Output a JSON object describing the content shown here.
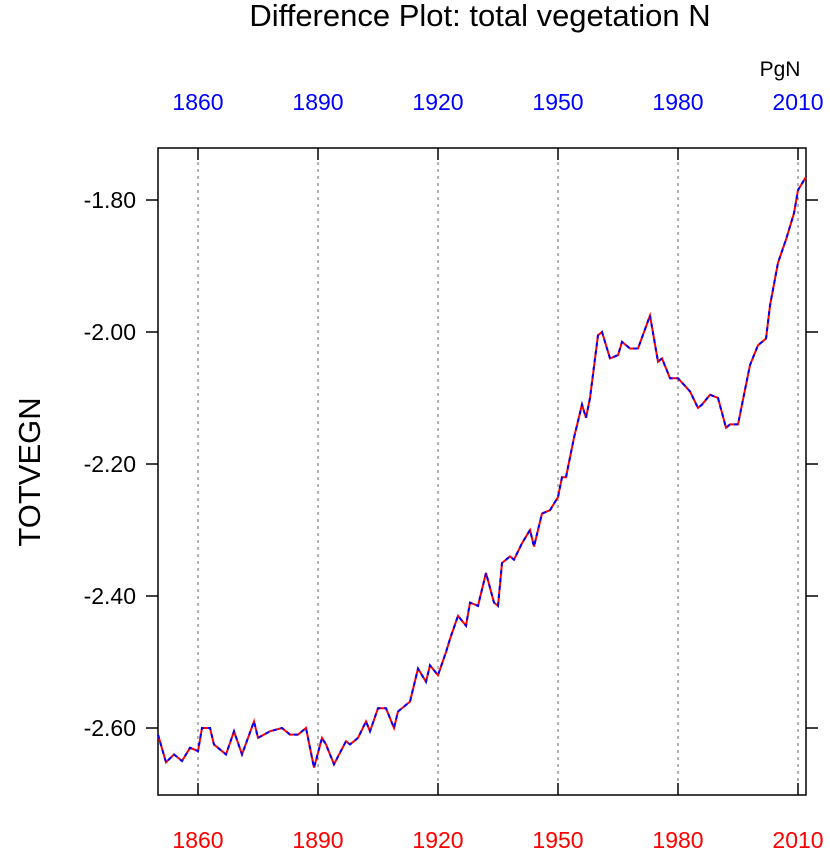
{
  "chart_data": {
    "type": "line",
    "title": "Difference Plot: total vegetation N",
    "y_label": "TOTVEGN",
    "units_label": "PgN",
    "x": [
      1850,
      1852,
      1854,
      1856,
      1858,
      1860,
      1861,
      1863,
      1864,
      1867,
      1869,
      1871,
      1874,
      1875,
      1878,
      1881,
      1883,
      1885,
      1887,
      1889,
      1891,
      1892,
      1894,
      1897,
      1898,
      1900,
      1902,
      1903,
      1905,
      1907,
      1909,
      1910,
      1913,
      1915,
      1917,
      1918,
      1920,
      1922,
      1923,
      1925,
      1927,
      1928,
      1930,
      1932,
      1934,
      1935,
      1936,
      1938,
      1939,
      1941,
      1943,
      1944,
      1946,
      1948,
      1950,
      1951,
      1952,
      1954,
      1956,
      1957,
      1958,
      1960,
      1961,
      1963,
      1965,
      1966,
      1968,
      1970,
      1973,
      1975,
      1976,
      1978,
      1980,
      1983,
      1985,
      1986,
      1988,
      1990,
      1992,
      1993,
      1995,
      1997,
      1998,
      2000,
      2002,
      2003,
      2005,
      2007,
      2009,
      2010,
      2012
    ],
    "series": [
      {
        "color": "#ff0000",
        "dashed": false,
        "values": [
          -2.61,
          -2.652,
          -2.64,
          -2.65,
          -2.63,
          -2.635,
          -2.6,
          -2.6,
          -2.625,
          -2.64,
          -2.605,
          -2.64,
          -2.59,
          -2.615,
          -2.605,
          -2.6,
          -2.61,
          -2.61,
          -2.6,
          -2.66,
          -2.615,
          -2.625,
          -2.655,
          -2.62,
          -2.625,
          -2.615,
          -2.59,
          -2.605,
          -2.57,
          -2.57,
          -2.6,
          -2.575,
          -2.56,
          -2.51,
          -2.53,
          -2.505,
          -2.52,
          -2.485,
          -2.465,
          -2.43,
          -2.445,
          -2.41,
          -2.415,
          -2.365,
          -2.41,
          -2.415,
          -2.35,
          -2.34,
          -2.345,
          -2.32,
          -2.3,
          -2.325,
          -2.275,
          -2.27,
          -2.25,
          -2.22,
          -2.22,
          -2.16,
          -2.11,
          -2.13,
          -2.1,
          -2.005,
          -2.0,
          -2.04,
          -2.035,
          -2.015,
          -2.025,
          -2.025,
          -1.975,
          -2.045,
          -2.04,
          -2.07,
          -2.07,
          -2.09,
          -2.115,
          -2.11,
          -2.095,
          -2.1,
          -2.145,
          -2.14,
          -2.14,
          -2.08,
          -2.05,
          -2.02,
          -2.01,
          -1.96,
          -1.895,
          -1.86,
          -1.82,
          -1.785,
          -1.765
        ]
      },
      {
        "color": "#0000ff",
        "dashed": true,
        "values": [
          -2.61,
          -2.652,
          -2.64,
          -2.65,
          -2.63,
          -2.635,
          -2.6,
          -2.6,
          -2.625,
          -2.64,
          -2.605,
          -2.64,
          -2.59,
          -2.615,
          -2.605,
          -2.6,
          -2.61,
          -2.61,
          -2.6,
          -2.66,
          -2.615,
          -2.625,
          -2.655,
          -2.62,
          -2.625,
          -2.615,
          -2.59,
          -2.605,
          -2.57,
          -2.57,
          -2.6,
          -2.575,
          -2.56,
          -2.51,
          -2.53,
          -2.505,
          -2.52,
          -2.485,
          -2.465,
          -2.43,
          -2.445,
          -2.41,
          -2.415,
          -2.365,
          -2.41,
          -2.415,
          -2.35,
          -2.34,
          -2.345,
          -2.32,
          -2.3,
          -2.325,
          -2.275,
          -2.27,
          -2.25,
          -2.22,
          -2.22,
          -2.16,
          -2.11,
          -2.13,
          -2.1,
          -2.005,
          -2.0,
          -2.04,
          -2.035,
          -2.015,
          -2.025,
          -2.025,
          -1.975,
          -2.045,
          -2.04,
          -2.07,
          -2.07,
          -2.09,
          -2.115,
          -2.11,
          -2.095,
          -2.1,
          -2.145,
          -2.14,
          -2.14,
          -2.08,
          -2.05,
          -2.02,
          -2.01,
          -1.96,
          -1.895,
          -1.86,
          -1.82,
          -1.785,
          -1.765
        ]
      }
    ],
    "xlim": [
      1850,
      2012
    ],
    "xticks": [
      1860,
      1890,
      1920,
      1950,
      1980,
      2010
    ],
    "top_tick_color": "#0000ff",
    "bottom_tick_color": "#ff0000",
    "ylim": [
      -2.7015,
      -1.7212
    ],
    "yticks": [
      {
        "value": -1.8,
        "label": "-1.80"
      },
      {
        "value": -2.0,
        "label": "-2.00"
      },
      {
        "value": -2.2,
        "label": "-2.20"
      },
      {
        "value": -2.4,
        "label": "-2.40"
      },
      {
        "value": -2.6,
        "label": "-2.60"
      }
    ],
    "grid": true
  }
}
